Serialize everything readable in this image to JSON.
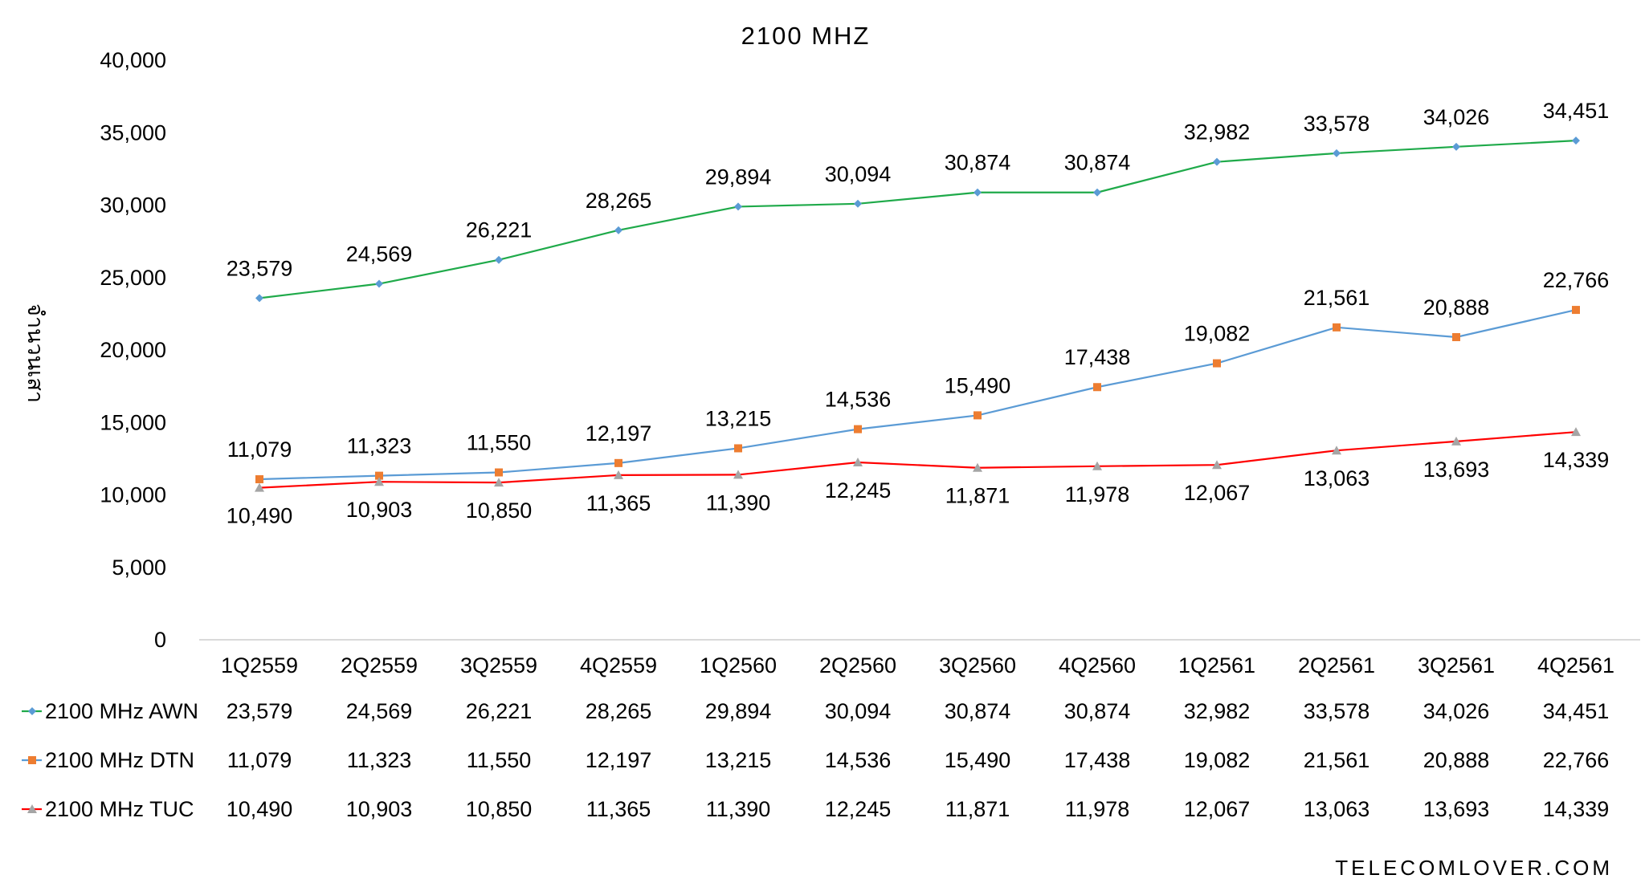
{
  "chart_data": {
    "type": "line",
    "title": "2100 MHZ",
    "ylabel": "จำนวนเสา",
    "xlabel": "",
    "ylim": [
      0,
      40000
    ],
    "yticks": [
      "0",
      "5,000",
      "10,000",
      "15,000",
      "20,000",
      "25,000",
      "30,000",
      "35,000",
      "40,000"
    ],
    "grid": false,
    "legend": "data-table",
    "categories": [
      "1Q2559",
      "2Q2559",
      "3Q2559",
      "4Q2559",
      "1Q2560",
      "2Q2560",
      "3Q2560",
      "4Q2560",
      "1Q2561",
      "2Q2561",
      "3Q2561",
      "4Q2561"
    ],
    "series": [
      {
        "name": "2100 MHz AWN",
        "line_color": "#1faa4a",
        "marker_color": "#5b9bd5",
        "marker": "diamond",
        "values": [
          23579,
          24569,
          26221,
          28265,
          29894,
          30094,
          30874,
          30874,
          32982,
          33578,
          34026,
          34451
        ],
        "labels": [
          "23,579",
          "24,569",
          "26,221",
          "28,265",
          "29,894",
          "30,094",
          "30,874",
          "30,874",
          "32,982",
          "33,578",
          "34,026",
          "34,451"
        ],
        "label_pos": "above"
      },
      {
        "name": "2100 MHz DTN",
        "line_color": "#5b9bd5",
        "marker_color": "#ed7d31",
        "marker": "square",
        "values": [
          11079,
          11323,
          11550,
          12197,
          13215,
          14536,
          15490,
          17438,
          19082,
          21561,
          20888,
          22766
        ],
        "labels": [
          "11,079",
          "11,323",
          "11,550",
          "12,197",
          "13,215",
          "14,536",
          "15,490",
          "17,438",
          "19,082",
          "21,561",
          "20,888",
          "22,766"
        ],
        "label_pos": "above"
      },
      {
        "name": "2100 MHz TUC",
        "line_color": "#ff0000",
        "marker_color": "#a5a5a5",
        "marker": "triangle",
        "values": [
          10490,
          10903,
          10850,
          11365,
          11390,
          12245,
          11871,
          11978,
          12067,
          13063,
          13693,
          14339
        ],
        "labels": [
          "10,490",
          "10,903",
          "10,850",
          "11,365",
          "11,390",
          "12,245",
          "11,871",
          "11,978",
          "12,067",
          "13,063",
          "13,693",
          "14,339"
        ],
        "label_pos": "below"
      }
    ]
  },
  "watermark": "TELECOMLOVER.COM"
}
